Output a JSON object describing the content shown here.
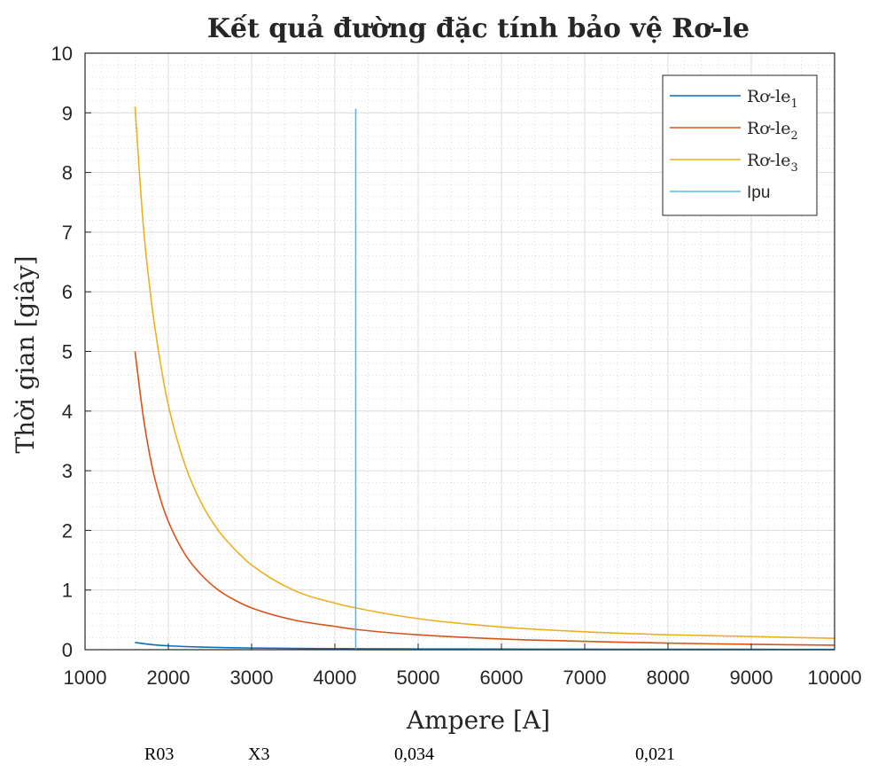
{
  "chart_data": {
    "type": "line",
    "title": "Kết quả đường đặc tính bảo vệ Rơ-le",
    "xlabel": "Ampere [A]",
    "ylabel": "Thời gian [giây]",
    "xlim": [
      1000,
      10000
    ],
    "ylim": [
      0,
      10
    ],
    "xticks": [
      1000,
      2000,
      3000,
      4000,
      5000,
      6000,
      7000,
      8000,
      9000,
      10000
    ],
    "yticks": [
      0,
      1,
      2,
      3,
      4,
      5,
      6,
      7,
      8,
      9,
      10
    ],
    "grid": true,
    "minor_grid": true,
    "legend_position": "top-right",
    "series": [
      {
        "name": "Rơ-le",
        "subscript": "1",
        "color": "#0072BD",
        "x": [
          1600,
          1800,
          2000,
          2200,
          2500,
          3000,
          3500,
          4000,
          4250,
          5000,
          6000,
          7000,
          8000,
          9000,
          10000
        ],
        "y": [
          0.12,
          0.085,
          0.065,
          0.052,
          0.04,
          0.028,
          0.022,
          0.018,
          0.016,
          0.013,
          0.01,
          0.008,
          0.007,
          0.006,
          0.005
        ]
      },
      {
        "name": "Rơ-le",
        "subscript": "2",
        "color": "#D95319",
        "x": [
          1600,
          1700,
          1800,
          1900,
          2000,
          2200,
          2400,
          2600,
          2800,
          3000,
          3500,
          4000,
          4250,
          5000,
          6000,
          7000,
          8000,
          9000,
          10000
        ],
        "y": [
          5.0,
          3.9,
          3.1,
          2.55,
          2.15,
          1.6,
          1.25,
          1.0,
          0.83,
          0.7,
          0.5,
          0.39,
          0.34,
          0.25,
          0.18,
          0.14,
          0.11,
          0.09,
          0.075
        ]
      },
      {
        "name": "Rơ-le",
        "subscript": "3",
        "color": "#EDB120",
        "x": [
          1600,
          1700,
          1800,
          1900,
          2000,
          2200,
          2400,
          2600,
          2800,
          3000,
          3500,
          4000,
          4250,
          5000,
          6000,
          7000,
          8000,
          9000,
          10000
        ],
        "y": [
          9.1,
          7.1,
          5.8,
          4.85,
          4.1,
          3.1,
          2.45,
          2.0,
          1.68,
          1.42,
          1.0,
          0.78,
          0.7,
          0.52,
          0.38,
          0.3,
          0.25,
          0.22,
          0.19
        ]
      },
      {
        "name": "Ipu",
        "subscript": "",
        "color": "#4DBEEE",
        "x": [
          4250,
          4250,
          10000
        ],
        "y": [
          9.07,
          0,
          0
        ]
      }
    ]
  },
  "footer": {
    "cells": [
      "R03",
      "X3",
      "0,034",
      "0,021"
    ]
  }
}
